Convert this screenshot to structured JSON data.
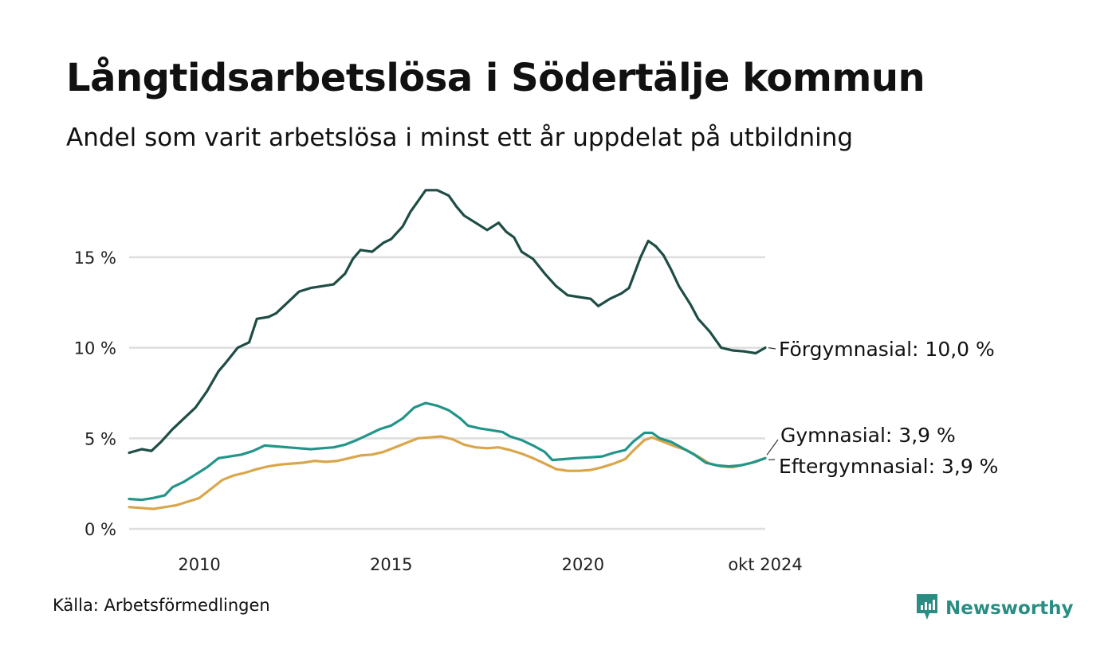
{
  "title": "Långtidsarbetslösa i Södertälje kommun",
  "subtitle": "Andel som varit arbetslösa i minst ett år uppdelat på utbildning",
  "source": "Källa: Arbetsförmedlingen",
  "brand": {
    "name": "Newsworthy",
    "icon": "newsworthy-logo-icon"
  },
  "colors": {
    "forgymnasial": "#1e4d45",
    "gymnasial": "#22958a",
    "eftergymnasial": "#d9a64a",
    "grid": "#dedede"
  },
  "chart_data": {
    "type": "line",
    "title": "Långtidsarbetslösa i Södertälje kommun",
    "xlabel": "",
    "ylabel": "",
    "xlim": [
      2008.17,
      2024.75
    ],
    "ylim": [
      0,
      19
    ],
    "x_ticks": [
      {
        "value": 2010,
        "label": "2010"
      },
      {
        "value": 2015,
        "label": "2015"
      },
      {
        "value": 2020,
        "label": "2020"
      },
      {
        "value": 2024.75,
        "label": "okt 2024"
      }
    ],
    "y_ticks": [
      {
        "value": 0,
        "label": "0 %"
      },
      {
        "value": 5,
        "label": "5 %"
      },
      {
        "value": 10,
        "label": "10 %"
      },
      {
        "value": 15,
        "label": "15 %"
      }
    ],
    "grid": true,
    "series": [
      {
        "key": "forgymnasial",
        "name": "Förgymnasial",
        "end_label": "Förgymnasial: 10,0 %",
        "last_value": 10.0,
        "points": [
          [
            2008.17,
            4.2
          ],
          [
            2008.5,
            4.4
          ],
          [
            2008.75,
            4.3
          ],
          [
            2009.0,
            4.8
          ],
          [
            2009.3,
            5.5
          ],
          [
            2009.6,
            6.1
          ],
          [
            2009.9,
            6.7
          ],
          [
            2010.2,
            7.6
          ],
          [
            2010.5,
            8.7
          ],
          [
            2010.7,
            9.2
          ],
          [
            2011.0,
            10.0
          ],
          [
            2011.3,
            10.3
          ],
          [
            2011.5,
            11.6
          ],
          [
            2011.8,
            11.7
          ],
          [
            2012.0,
            11.9
          ],
          [
            2012.3,
            12.5
          ],
          [
            2012.6,
            13.1
          ],
          [
            2012.9,
            13.3
          ],
          [
            2013.2,
            13.4
          ],
          [
            2013.5,
            13.5
          ],
          [
            2013.8,
            14.1
          ],
          [
            2014.0,
            14.9
          ],
          [
            2014.2,
            15.4
          ],
          [
            2014.5,
            15.3
          ],
          [
            2014.8,
            15.8
          ],
          [
            2015.0,
            16.0
          ],
          [
            2015.3,
            16.7
          ],
          [
            2015.5,
            17.5
          ],
          [
            2015.7,
            18.1
          ],
          [
            2015.9,
            18.7
          ],
          [
            2016.2,
            18.7
          ],
          [
            2016.5,
            18.4
          ],
          [
            2016.7,
            17.8
          ],
          [
            2016.9,
            17.3
          ],
          [
            2017.2,
            16.9
          ],
          [
            2017.5,
            16.5
          ],
          [
            2017.8,
            16.9
          ],
          [
            2018.0,
            16.4
          ],
          [
            2018.2,
            16.1
          ],
          [
            2018.4,
            15.3
          ],
          [
            2018.7,
            14.9
          ],
          [
            2019.0,
            14.1
          ],
          [
            2019.3,
            13.4
          ],
          [
            2019.6,
            12.9
          ],
          [
            2019.9,
            12.8
          ],
          [
            2020.2,
            12.7
          ],
          [
            2020.4,
            12.3
          ],
          [
            2020.7,
            12.7
          ],
          [
            2021.0,
            13.0
          ],
          [
            2021.2,
            13.3
          ],
          [
            2021.5,
            15.0
          ],
          [
            2021.7,
            15.9
          ],
          [
            2021.9,
            15.6
          ],
          [
            2022.1,
            15.1
          ],
          [
            2022.3,
            14.3
          ],
          [
            2022.5,
            13.4
          ],
          [
            2022.8,
            12.4
          ],
          [
            2023.0,
            11.6
          ],
          [
            2023.3,
            10.9
          ],
          [
            2023.6,
            10.0
          ],
          [
            2023.9,
            9.85
          ],
          [
            2024.2,
            9.8
          ],
          [
            2024.5,
            9.7
          ],
          [
            2024.75,
            10.0
          ]
        ]
      },
      {
        "key": "gymnasial",
        "name": "Gymnasial",
        "end_label": "Gymnasial:  3,9 %",
        "last_value": 3.9,
        "points": [
          [
            2008.17,
            1.65
          ],
          [
            2008.5,
            1.6
          ],
          [
            2008.8,
            1.7
          ],
          [
            2009.1,
            1.85
          ],
          [
            2009.3,
            2.3
          ],
          [
            2009.6,
            2.6
          ],
          [
            2009.9,
            3.0
          ],
          [
            2010.2,
            3.4
          ],
          [
            2010.5,
            3.9
          ],
          [
            2010.8,
            4.0
          ],
          [
            2011.1,
            4.1
          ],
          [
            2011.4,
            4.3
          ],
          [
            2011.7,
            4.6
          ],
          [
            2012.0,
            4.55
          ],
          [
            2012.3,
            4.5
          ],
          [
            2012.6,
            4.45
          ],
          [
            2012.9,
            4.4
          ],
          [
            2013.2,
            4.45
          ],
          [
            2013.5,
            4.5
          ],
          [
            2013.8,
            4.65
          ],
          [
            2014.1,
            4.9
          ],
          [
            2014.4,
            5.2
          ],
          [
            2014.7,
            5.5
          ],
          [
            2015.0,
            5.7
          ],
          [
            2015.3,
            6.1
          ],
          [
            2015.6,
            6.7
          ],
          [
            2015.9,
            6.95
          ],
          [
            2016.2,
            6.8
          ],
          [
            2016.5,
            6.55
          ],
          [
            2016.8,
            6.1
          ],
          [
            2017.0,
            5.7
          ],
          [
            2017.3,
            5.55
          ],
          [
            2017.6,
            5.45
          ],
          [
            2017.9,
            5.35
          ],
          [
            2018.1,
            5.1
          ],
          [
            2018.4,
            4.9
          ],
          [
            2018.7,
            4.6
          ],
          [
            2019.0,
            4.25
          ],
          [
            2019.2,
            3.8
          ],
          [
            2019.5,
            3.85
          ],
          [
            2019.8,
            3.9
          ],
          [
            2020.2,
            3.95
          ],
          [
            2020.5,
            4.0
          ],
          [
            2020.8,
            4.2
          ],
          [
            2021.1,
            4.35
          ],
          [
            2021.3,
            4.8
          ],
          [
            2021.6,
            5.3
          ],
          [
            2021.8,
            5.3
          ],
          [
            2022.0,
            5.0
          ],
          [
            2022.3,
            4.8
          ],
          [
            2022.6,
            4.45
          ],
          [
            2022.9,
            4.1
          ],
          [
            2023.2,
            3.65
          ],
          [
            2023.5,
            3.5
          ],
          [
            2023.8,
            3.45
          ],
          [
            2024.1,
            3.5
          ],
          [
            2024.4,
            3.65
          ],
          [
            2024.75,
            3.9
          ]
        ]
      },
      {
        "key": "eftergymnasial",
        "name": "Eftergymnasial",
        "end_label": "Eftergymnasial:  3,9 %",
        "last_value": 3.9,
        "points": [
          [
            2008.17,
            1.2
          ],
          [
            2008.5,
            1.15
          ],
          [
            2008.8,
            1.1
          ],
          [
            2009.1,
            1.2
          ],
          [
            2009.4,
            1.3
          ],
          [
            2009.7,
            1.5
          ],
          [
            2010.0,
            1.7
          ],
          [
            2010.3,
            2.2
          ],
          [
            2010.6,
            2.7
          ],
          [
            2010.9,
            2.95
          ],
          [
            2011.2,
            3.1
          ],
          [
            2011.5,
            3.3
          ],
          [
            2011.8,
            3.45
          ],
          [
            2012.1,
            3.55
          ],
          [
            2012.4,
            3.6
          ],
          [
            2012.7,
            3.65
          ],
          [
            2013.0,
            3.75
          ],
          [
            2013.3,
            3.7
          ],
          [
            2013.6,
            3.75
          ],
          [
            2013.9,
            3.9
          ],
          [
            2014.2,
            4.05
          ],
          [
            2014.5,
            4.1
          ],
          [
            2014.8,
            4.25
          ],
          [
            2015.1,
            4.5
          ],
          [
            2015.4,
            4.75
          ],
          [
            2015.7,
            5.0
          ],
          [
            2016.0,
            5.05
          ],
          [
            2016.3,
            5.1
          ],
          [
            2016.6,
            4.95
          ],
          [
            2016.9,
            4.65
          ],
          [
            2017.2,
            4.5
          ],
          [
            2017.5,
            4.45
          ],
          [
            2017.8,
            4.5
          ],
          [
            2018.1,
            4.35
          ],
          [
            2018.4,
            4.15
          ],
          [
            2018.7,
            3.9
          ],
          [
            2019.0,
            3.6
          ],
          [
            2019.3,
            3.3
          ],
          [
            2019.6,
            3.2
          ],
          [
            2019.9,
            3.2
          ],
          [
            2020.2,
            3.25
          ],
          [
            2020.5,
            3.4
          ],
          [
            2020.8,
            3.6
          ],
          [
            2021.1,
            3.85
          ],
          [
            2021.3,
            4.3
          ],
          [
            2021.6,
            4.9
          ],
          [
            2021.8,
            5.05
          ],
          [
            2022.1,
            4.8
          ],
          [
            2022.4,
            4.55
          ],
          [
            2022.7,
            4.35
          ],
          [
            2023.0,
            4.0
          ],
          [
            2023.3,
            3.6
          ],
          [
            2023.6,
            3.45
          ],
          [
            2023.9,
            3.4
          ],
          [
            2024.2,
            3.55
          ],
          [
            2024.5,
            3.7
          ],
          [
            2024.75,
            3.9
          ]
        ]
      }
    ]
  }
}
